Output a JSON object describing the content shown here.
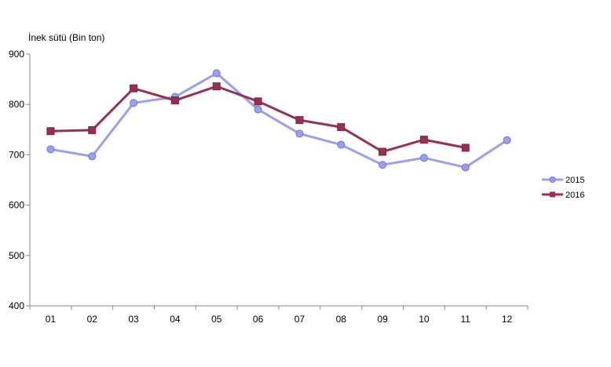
{
  "chart_data": {
    "type": "line",
    "ylabel": "İnek sütü (Bin ton)",
    "xlabel": "",
    "categories": [
      "01",
      "02",
      "03",
      "04",
      "05",
      "06",
      "07",
      "08",
      "09",
      "10",
      "11",
      "12"
    ],
    "ylim": [
      400,
      900
    ],
    "yticks": [
      400,
      500,
      600,
      700,
      800,
      900
    ],
    "grid": false,
    "legend_position": "right",
    "series": [
      {
        "name": "2015",
        "color": "#9b9ff0",
        "marker": "circle",
        "values": [
          711,
          697,
          803,
          815,
          862,
          790,
          742,
          720,
          680,
          694,
          675,
          729
        ]
      },
      {
        "name": "2016",
        "color": "#98304f",
        "marker": "square",
        "values": [
          747,
          749,
          832,
          808,
          836,
          806,
          769,
          755,
          706,
          730,
          714,
          null
        ]
      }
    ]
  }
}
